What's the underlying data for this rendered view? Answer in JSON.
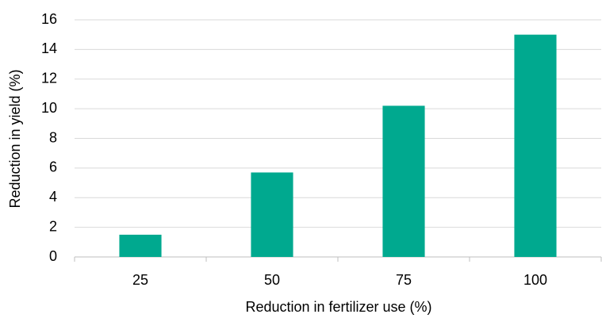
{
  "chart_data": {
    "type": "bar",
    "x_label": "Reduction in fertilizer use (%)",
    "y_label": "Reduction in yield (%)",
    "categories": [
      "25",
      "50",
      "75",
      "100"
    ],
    "values": [
      1.5,
      5.7,
      10.2,
      15.0
    ],
    "color": "#00a98f",
    "ylim": [
      0,
      16
    ],
    "yticks": [
      0,
      2,
      4,
      6,
      8,
      10,
      12,
      14,
      16
    ],
    "grid": true
  }
}
